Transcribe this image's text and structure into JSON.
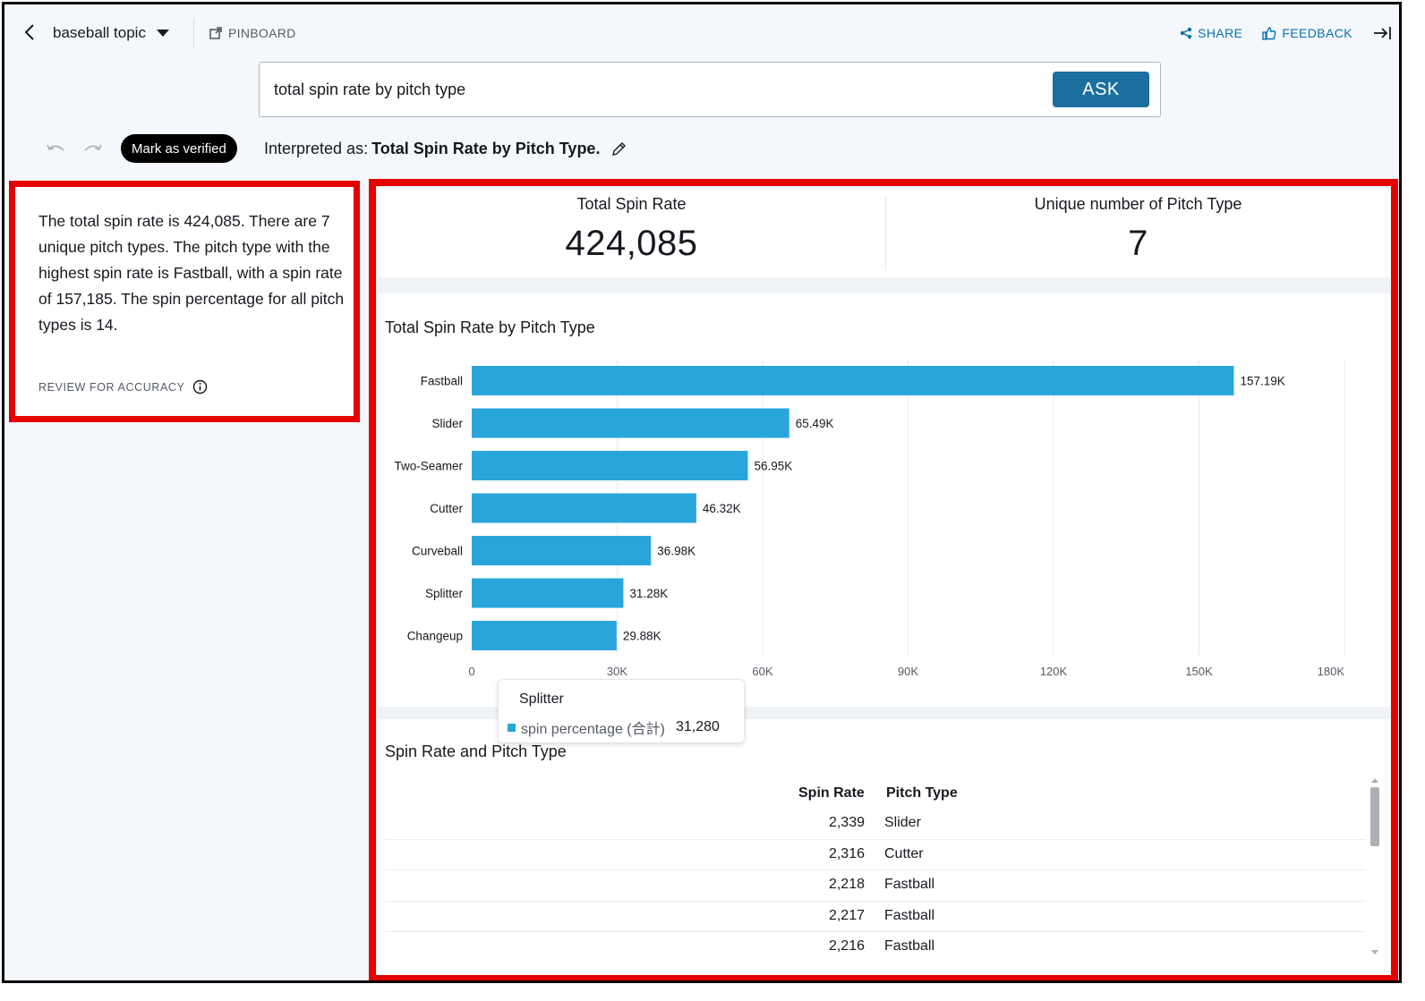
{
  "header": {
    "topic": "baseball topic",
    "pinboard_label": "PINBOARD",
    "share_label": "SHARE",
    "feedback_label": "FEEDBACK"
  },
  "search": {
    "value": "total spin rate by pitch type",
    "ask_label": "ASK"
  },
  "toolbar": {
    "verify_label": "Mark as verified",
    "interpreted_prefix": "Interpreted as:",
    "interpreted_value": "Total Spin Rate by Pitch Type."
  },
  "narrative": {
    "text": "The total spin rate is 424,085. There are 7 unique pitch types. The pitch type with the highest spin rate is Fastball, with a spin rate of 157,185. The spin percentage for all pitch types is 14.",
    "review_label": "REVIEW FOR ACCURACY"
  },
  "kpis": [
    {
      "label": "Total Spin Rate",
      "value": "424,085"
    },
    {
      "label": "Unique number of Pitch Type",
      "value": "7"
    }
  ],
  "chart_data": {
    "type": "bar",
    "orientation": "horizontal",
    "title": "Total Spin Rate by Pitch Type",
    "categories": [
      "Fastball",
      "Slider",
      "Two-Seamer",
      "Cutter",
      "Curveball",
      "Splitter",
      "Changeup"
    ],
    "values": [
      157190,
      65490,
      56950,
      46320,
      36980,
      31280,
      29880
    ],
    "data_labels": [
      "157.19K",
      "65.49K",
      "56.95K",
      "46.32K",
      "36.98K",
      "31.28K",
      "29.88K"
    ],
    "xlim": [
      0,
      180000
    ],
    "xticks": [
      0,
      30000,
      60000,
      90000,
      120000,
      150000,
      180000
    ],
    "xtick_labels": [
      "0",
      "30K",
      "60K",
      "90K",
      "120K",
      "150K",
      "180K"
    ],
    "grid": true,
    "bar_color": "#2aa5dc"
  },
  "tooltip": {
    "title": "Splitter",
    "series": "spin percentage (合計)",
    "value": "31,280"
  },
  "table": {
    "title": "Spin Rate and Pitch Type",
    "columns": [
      "Spin Rate",
      "Pitch Type"
    ],
    "rows": [
      [
        "2,339",
        "Slider"
      ],
      [
        "2,316",
        "Cutter"
      ],
      [
        "2,218",
        "Fastball"
      ],
      [
        "2,217",
        "Fastball"
      ],
      [
        "2,216",
        "Fastball"
      ]
    ]
  },
  "colors": {
    "accent": "#1b6f9e",
    "link": "#0b6fae",
    "highlight_border": "#e60000"
  }
}
